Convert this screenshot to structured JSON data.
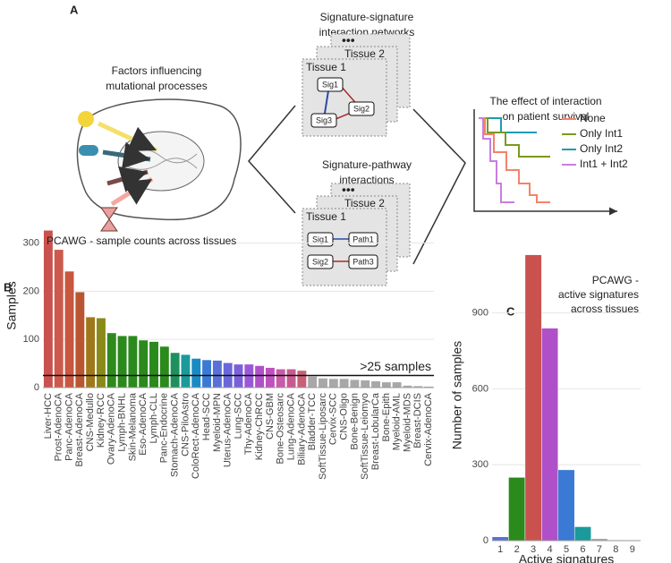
{
  "panel_a": {
    "label": "A",
    "factors_title": [
      "Factors influencing",
      "mutational processes"
    ],
    "network_title": [
      "Signature-signature",
      "interaction networks"
    ],
    "pathway_title": [
      "Signature-pathway",
      "interactions"
    ],
    "tissue_front": "Tissue 1",
    "tissue_back": "Tissue 2",
    "nodes": [
      "Sig1",
      "Sig2",
      "Sig3"
    ],
    "pathway_nodes": [
      "Sig1",
      "Path1",
      "Sig2",
      "Path3"
    ],
    "survival_title": [
      "The effect of interaction",
      "on patient survival"
    ],
    "legend": [
      {
        "name": "None",
        "color": "#f4826b"
      },
      {
        "name": "Only Int1",
        "color": "#7a9a1e"
      },
      {
        "name": "Only Int2",
        "color": "#1f9ab5"
      },
      {
        "name": "Int1 + Int2",
        "color": "#c77ee0"
      }
    ]
  },
  "chart_data": [
    {
      "type": "bar",
      "label": "B",
      "title": "PCAWG - sample counts across tissues",
      "y_label": "Samples",
      "categories": [
        "Liver-HCC",
        "Prost-AdenoCA",
        "Panc-AdenoCA",
        "Breast-AdenoCA",
        "CNS-Medullo",
        "Kidney-RCC",
        "Ovary-AdenoCA",
        "Lymph-BNHL",
        "Skin-Melanoma",
        "Eso-AdenoCA",
        "Lymph-CLL",
        "Panc-Endocrine",
        "Stomach-AdenoCA",
        "CNS-PiloAstro",
        "ColoRect-AdenoCA",
        "Head-SCC",
        "Myeloid-MPN",
        "Uterus-AdenoCA",
        "Lung-SCC",
        "Thy-AdenoCA",
        "Kidney-ChRCC",
        "CNS-GBM",
        "Bone-Osteosarc",
        "Lung-AdenoCA",
        "Biliary-AdenoCA",
        "Bladder-TCC",
        "SoftTissue-Liposarc",
        "Cervix-SCC",
        "CNS-Oligo",
        "Bone-Benign",
        "SoftTissue-Leiomyo",
        "Breast-LobularCa",
        "Bone-Epith",
        "Myeloid-AML",
        "Myeloid-MDS",
        "Breast-DCIS",
        "Cervix-AdenoCA"
      ],
      "values": [
        326,
        286,
        241,
        198,
        146,
        144,
        113,
        107,
        107,
        98,
        95,
        85,
        72,
        68,
        60,
        57,
        56,
        51,
        48,
        48,
        45,
        41,
        38,
        38,
        35,
        23,
        19,
        18,
        18,
        16,
        15,
        13,
        11,
        11,
        4,
        3,
        2
      ],
      "colors": [
        "#c9524f",
        "#cc5a4c",
        "#c9563e",
        "#b95530",
        "#a0781c",
        "#8a8a18",
        "#2e8a1c",
        "#2a8a1c",
        "#2a8a1c",
        "#2a8a1c",
        "#2a8a1c",
        "#2a8a1c",
        "#1e9060",
        "#1a9a9a",
        "#1a8ac4",
        "#3a7ad4",
        "#5a70d8",
        "#6a68d8",
        "#7a60d8",
        "#9a58d8",
        "#b050c8",
        "#c050c0",
        "#c85aa8",
        "#c85a90",
        "#c86078",
        "#a8a8a8",
        "#a8a8a8",
        "#a8a8a8",
        "#a8a8a8",
        "#a8a8a8",
        "#a8a8a8",
        "#a8a8a8",
        "#a8a8a8",
        "#a8a8a8",
        "#a8a8a8",
        "#a8a8a8",
        "#a8a8a8"
      ],
      "ylim": [
        0,
        340
      ],
      "yticks": [
        0,
        100,
        200,
        300
      ],
      "grid": true,
      "threshold": 25,
      "annotation": ">25 samples"
    },
    {
      "type": "bar",
      "label": "C",
      "title": [
        "PCAWG -",
        "active signatures",
        "across tissues"
      ],
      "y_label": "Number of samples",
      "x_label": "Active signatures",
      "categories": [
        "1",
        "2",
        "3",
        "4",
        "5",
        "6",
        "7",
        "8",
        "9"
      ],
      "values": [
        15,
        250,
        1130,
        840,
        280,
        55,
        8,
        3,
        2
      ],
      "colors": [
        "#5a70d8",
        "#2a8a1c",
        "#c9524f",
        "#b050c8",
        "#3a7ad4",
        "#1a9a9a",
        "#a8a8a8",
        "#a8a8a8",
        "#a8a8a8"
      ],
      "ylim": [
        0,
        1150
      ],
      "yticks": [
        0,
        300,
        600,
        900
      ],
      "grid": true
    }
  ]
}
